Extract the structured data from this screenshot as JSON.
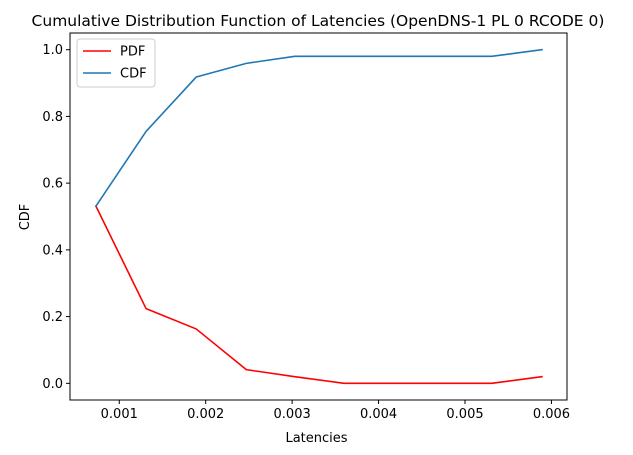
{
  "chart_data": {
    "type": "line",
    "title": "Cumulative Distribution Function of Latencies (OpenDNS-1 PL 0 RCODE 0)",
    "xlabel": "Latencies",
    "ylabel": "CDF",
    "xlim": [
      0.00043,
      0.00618
    ],
    "ylim": [
      -0.05,
      1.05
    ],
    "xticks": [
      0.001,
      0.002,
      0.003,
      0.004,
      0.005,
      0.006
    ],
    "xtick_labels": [
      "0.001",
      "0.002",
      "0.003",
      "0.004",
      "0.005",
      "0.006"
    ],
    "yticks": [
      0.0,
      0.2,
      0.4,
      0.6,
      0.8,
      1.0
    ],
    "ytick_labels": [
      "0.0",
      "0.2",
      "0.4",
      "0.6",
      "0.8",
      "1.0"
    ],
    "grid": false,
    "legend_position": "top-left",
    "series": [
      {
        "name": "PDF",
        "color": "#ff0000",
        "x": [
          0.00073,
          0.00131,
          0.00189,
          0.00247,
          0.00303,
          0.0036,
          0.00531,
          0.00589
        ],
        "y": [
          0.531,
          0.224,
          0.163,
          0.041,
          0.02,
          0.0,
          0.0,
          0.02
        ]
      },
      {
        "name": "CDF",
        "color": "#1f77b4",
        "x": [
          0.00073,
          0.00131,
          0.00189,
          0.00247,
          0.00303,
          0.0036,
          0.00531,
          0.00589
        ],
        "y": [
          0.531,
          0.755,
          0.918,
          0.959,
          0.98,
          0.98,
          0.98,
          1.0
        ]
      }
    ]
  }
}
